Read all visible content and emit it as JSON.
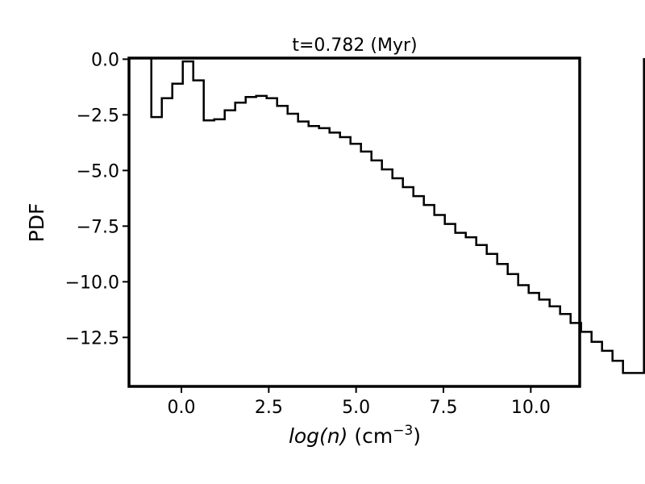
{
  "chart_data": {
    "type": "line",
    "style": "step histogram",
    "title": "t=0.782 (Myr)",
    "xlabel": {
      "italic_part": "log(n)",
      "unit_base": " (cm",
      "unit_exp": "−3",
      "unit_close": ")"
    },
    "ylabel": "PDF",
    "xlim": [
      -1.5,
      11.4
    ],
    "ylim": [
      -14.7,
      0.05
    ],
    "x_ticks": [
      {
        "value": 0.0,
        "label": "0.0"
      },
      {
        "value": 2.5,
        "label": "2.5"
      },
      {
        "value": 5.0,
        "label": "5.0"
      },
      {
        "value": 7.5,
        "label": "7.5"
      },
      {
        "value": 10.0,
        "label": "10.0"
      }
    ],
    "y_ticks": [
      {
        "value": 0.0,
        "label": "0.0"
      },
      {
        "value": -2.5,
        "label": "−2.5"
      },
      {
        "value": -5.0,
        "label": "−5.0"
      },
      {
        "value": -7.5,
        "label": "−7.5"
      },
      {
        "value": -10.0,
        "label": "−10.0"
      },
      {
        "value": -12.5,
        "label": "−12.5"
      }
    ],
    "grid": false,
    "line_color": "#000000",
    "bin_width": 0.3,
    "bin_start": -0.86,
    "values": [
      -2.6,
      -1.75,
      -1.1,
      -0.1,
      -0.95,
      -2.75,
      -2.7,
      -2.3,
      -1.95,
      -1.7,
      -1.65,
      -1.75,
      -2.1,
      -2.45,
      -2.8,
      -3.0,
      -3.1,
      -3.3,
      -3.5,
      -3.8,
      -4.15,
      -4.55,
      -4.95,
      -5.35,
      -5.75,
      -6.15,
      -6.55,
      -7.0,
      -7.4,
      -7.8,
      -8.0,
      -8.35,
      -8.75,
      -9.2,
      -9.65,
      -10.15,
      -10.5,
      -10.8,
      -11.1,
      -11.45,
      -11.85,
      -12.25,
      -12.7,
      -13.1,
      -13.55,
      -14.1,
      -14.1
    ]
  }
}
